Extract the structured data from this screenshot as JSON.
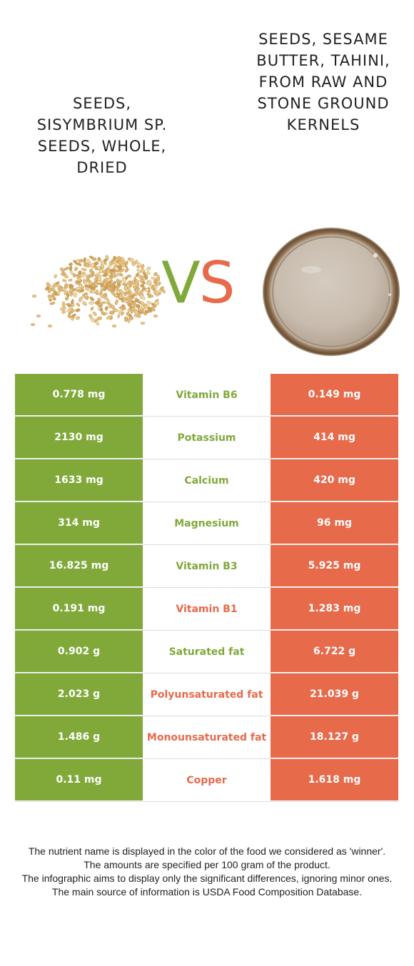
{
  "left_food": {
    "name": "Seeds, sisymbrium sp. seeds, whole, dried",
    "image_icon": "sesame-seeds-pile"
  },
  "right_food": {
    "name": "Seeds, sesame butter, tahini, from raw and stone ground kernels",
    "image_icon": "tahini-jar-top-view"
  },
  "vs": {
    "v": "V",
    "s": "S"
  },
  "colors": {
    "left_accent": "#80a93a",
    "right_accent": "#e76a4b",
    "text": "#222222"
  },
  "rows": [
    {
      "left": "0.778 mg",
      "nutrient": "Vitamin B6",
      "right": "0.149 mg",
      "winner": "left"
    },
    {
      "left": "2130 mg",
      "nutrient": "Potassium",
      "right": "414 mg",
      "winner": "left"
    },
    {
      "left": "1633 mg",
      "nutrient": "Calcium",
      "right": "420 mg",
      "winner": "left"
    },
    {
      "left": "314 mg",
      "nutrient": "Magnesium",
      "right": "96 mg",
      "winner": "left"
    },
    {
      "left": "16.825 mg",
      "nutrient": "Vitamin B3",
      "right": "5.925 mg",
      "winner": "left"
    },
    {
      "left": "0.191 mg",
      "nutrient": "Vitamin B1",
      "right": "1.283 mg",
      "winner": "right"
    },
    {
      "left": "0.902 g",
      "nutrient": "Saturated fat",
      "right": "6.722 g",
      "winner": "left"
    },
    {
      "left": "2.023 g",
      "nutrient": "Polyunsaturated fat",
      "right": "21.039 g",
      "winner": "right"
    },
    {
      "left": "1.486 g",
      "nutrient": "Monounsaturated fat",
      "right": "18.127 g",
      "winner": "right"
    },
    {
      "left": "0.11 mg",
      "nutrient": "Copper",
      "right": "1.618 mg",
      "winner": "right"
    }
  ],
  "footnotes": [
    "The nutrient name is displayed in the color of the food we considered as 'winner'.",
    "The amounts are specified per 100 gram of the product.",
    "The infographic aims to display only the significant differences, ignoring minor ones.",
    "The main source of information is USDA Food Composition Database."
  ]
}
